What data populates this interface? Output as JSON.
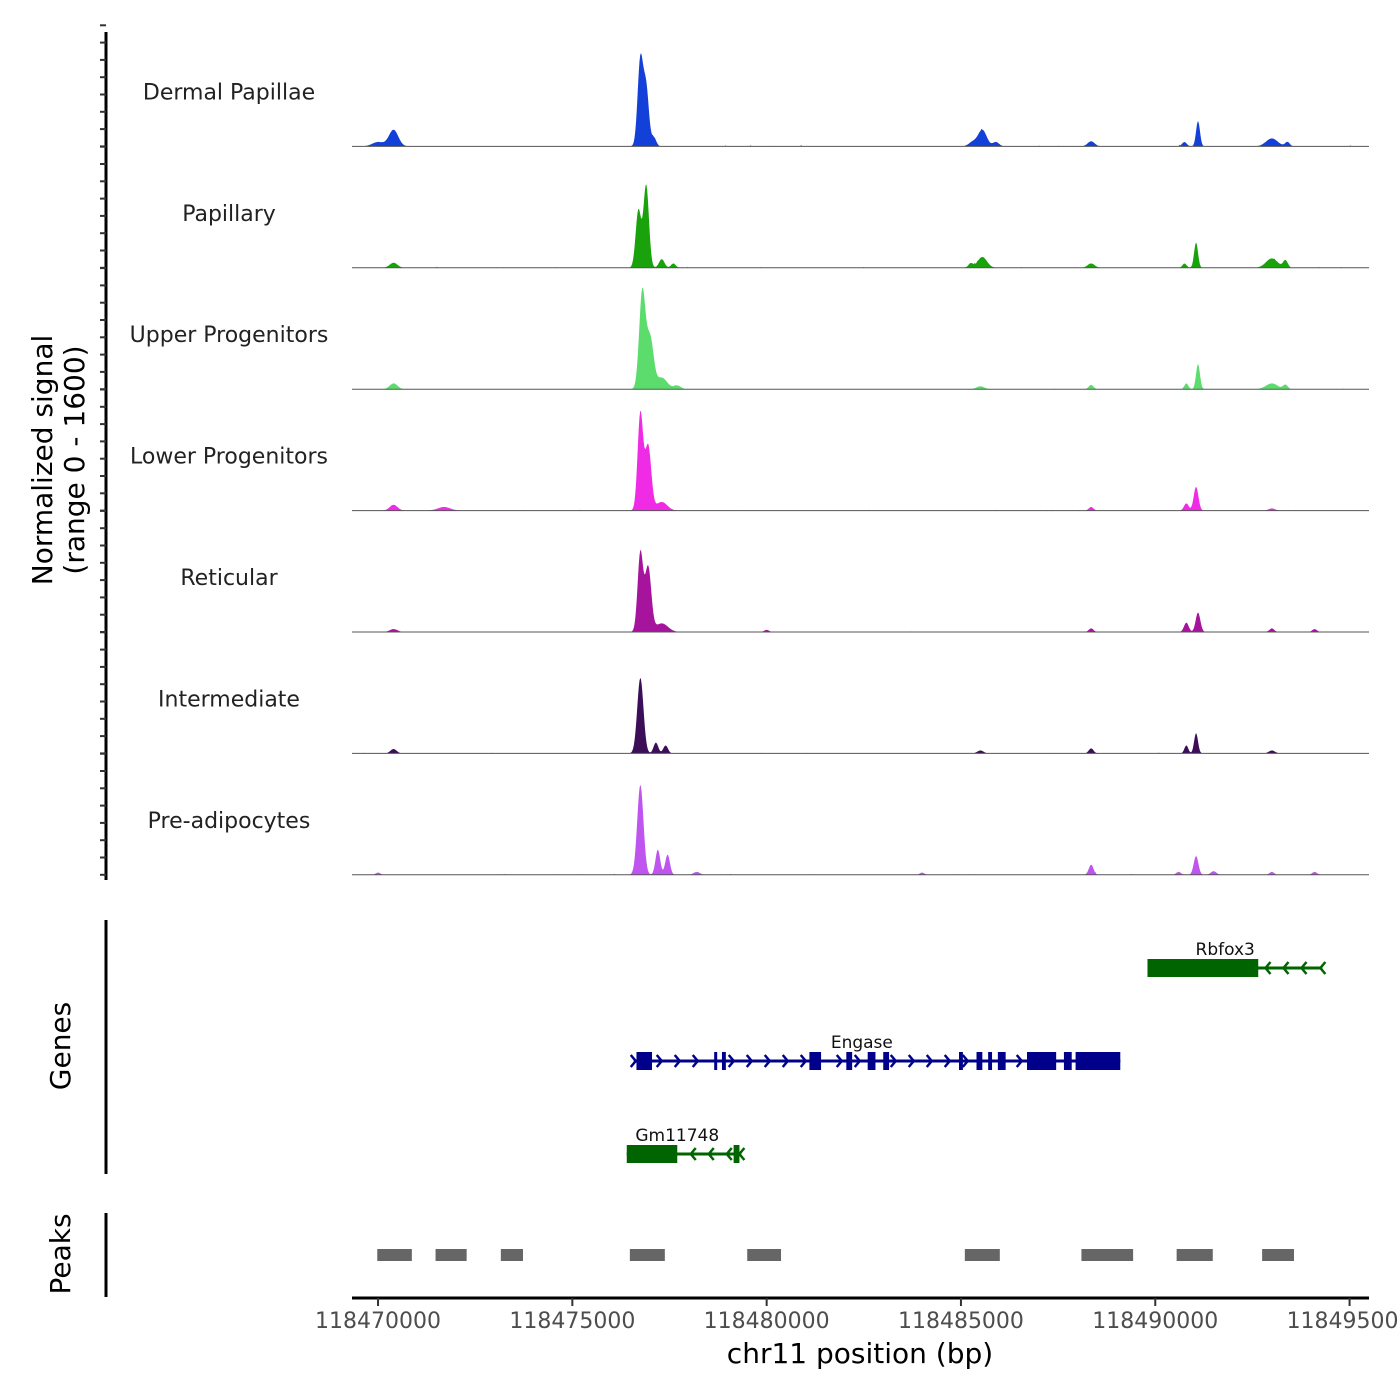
{
  "chart_data": {
    "type": "genome-coverage",
    "xlabel": "chr11 position (bp)",
    "ylabel": "Normalized signal",
    "ylabel_range": "(range 0 - 1600)",
    "y_range": [
      0,
      1600
    ],
    "x_range": [
      118469330,
      118495500
    ],
    "x_ticks": [
      118470000,
      118475000,
      118480000,
      118485000,
      118490000,
      118495000
    ],
    "x_tick_labels": [
      "118470000",
      "118475000",
      "118480000",
      "118485000",
      "118490000",
      "118495000"
    ],
    "tracks": [
      {
        "name": "Dermal Papillae",
        "color": "#1340D8",
        "peaks": [
          [
            118470000,
            60,
            150
          ],
          [
            118470400,
            230,
            120
          ],
          [
            118476750,
            1200,
            70
          ],
          [
            118476900,
            800,
            70
          ],
          [
            118477100,
            120,
            60
          ],
          [
            118485300,
            60,
            100
          ],
          [
            118485550,
            230,
            110
          ],
          [
            118485900,
            60,
            80
          ],
          [
            118488350,
            70,
            90
          ],
          [
            118490750,
            60,
            60
          ],
          [
            118491100,
            350,
            50
          ],
          [
            118493000,
            110,
            150
          ],
          [
            118493400,
            60,
            60
          ]
        ],
        "noise": 12
      },
      {
        "name": "Papillary",
        "color": "#1AA20C",
        "peaks": [
          [
            118470400,
            70,
            100
          ],
          [
            118476700,
            800,
            70
          ],
          [
            118476900,
            1150,
            70
          ],
          [
            118477300,
            120,
            70
          ],
          [
            118477600,
            60,
            60
          ],
          [
            118485250,
            60,
            60
          ],
          [
            118485550,
            150,
            120
          ],
          [
            118488350,
            60,
            90
          ],
          [
            118490750,
            60,
            50
          ],
          [
            118491050,
            350,
            50
          ],
          [
            118493000,
            130,
            150
          ],
          [
            118493350,
            100,
            60
          ]
        ],
        "noise": 8
      },
      {
        "name": "Upper Progenitors",
        "color": "#5CDC6D",
        "peaks": [
          [
            118470400,
            80,
            100
          ],
          [
            118476800,
            1350,
            80
          ],
          [
            118477000,
            700,
            90
          ],
          [
            118477300,
            160,
            140
          ],
          [
            118477700,
            50,
            90
          ],
          [
            118485500,
            40,
            100
          ],
          [
            118488350,
            60,
            60
          ],
          [
            118490800,
            80,
            50
          ],
          [
            118491100,
            350,
            50
          ],
          [
            118493000,
            80,
            150
          ],
          [
            118493350,
            60,
            60
          ]
        ],
        "noise": 6
      },
      {
        "name": "Lower Progenitors",
        "color": "#F02BE6",
        "peaks": [
          [
            118470400,
            80,
            100
          ],
          [
            118471700,
            50,
            160
          ],
          [
            118476750,
            1350,
            70
          ],
          [
            118476950,
            900,
            80
          ],
          [
            118477300,
            120,
            140
          ],
          [
            118488350,
            50,
            60
          ],
          [
            118490800,
            100,
            60
          ],
          [
            118491050,
            330,
            60
          ],
          [
            118493000,
            30,
            80
          ]
        ],
        "noise": 7
      },
      {
        "name": "Reticular",
        "color": "#A6149E",
        "peaks": [
          [
            118470400,
            40,
            100
          ],
          [
            118476750,
            1100,
            70
          ],
          [
            118476950,
            900,
            80
          ],
          [
            118477300,
            120,
            160
          ],
          [
            118480000,
            30,
            60
          ],
          [
            118488350,
            50,
            60
          ],
          [
            118490800,
            130,
            60
          ],
          [
            118491100,
            270,
            60
          ],
          [
            118493000,
            50,
            60
          ],
          [
            118494100,
            40,
            60
          ]
        ],
        "noise": 5
      },
      {
        "name": "Intermediate",
        "color": "#3C0E57",
        "peaks": [
          [
            118470400,
            60,
            80
          ],
          [
            118476750,
            1050,
            80
          ],
          [
            118477150,
            150,
            60
          ],
          [
            118477400,
            110,
            60
          ],
          [
            118485500,
            40,
            80
          ],
          [
            118488350,
            70,
            60
          ],
          [
            118490800,
            110,
            50
          ],
          [
            118491050,
            280,
            50
          ],
          [
            118493000,
            40,
            80
          ]
        ],
        "noise": 5
      },
      {
        "name": "Pre-adipocytes",
        "color": "#BD55EE",
        "peaks": [
          [
            118470000,
            30,
            60
          ],
          [
            118476750,
            1250,
            80
          ],
          [
            118477200,
            350,
            60
          ],
          [
            118477450,
            280,
            60
          ],
          [
            118478200,
            40,
            80
          ],
          [
            118484000,
            30,
            60
          ],
          [
            118488350,
            140,
            60
          ],
          [
            118490600,
            40,
            60
          ],
          [
            118491050,
            260,
            60
          ],
          [
            118491500,
            50,
            70
          ],
          [
            118493000,
            40,
            60
          ],
          [
            118494100,
            40,
            60
          ]
        ],
        "noise": 9
      }
    ],
    "genes_label": "Genes",
    "genes": [
      {
        "name": "Rbfox3",
        "color": "#006400",
        "strand": "-",
        "start": 118489800,
        "end": 118494300,
        "label_pos": 118491800,
        "exons": [
          [
            118489800,
            118492650
          ]
        ]
      },
      {
        "name": "Engase",
        "color": "#00008B",
        "strand": "+",
        "start": 118476580,
        "end": 118489100,
        "label_pos": 118482450,
        "exons": [
          [
            118476650,
            118477050
          ],
          [
            118478650,
            118478700
          ],
          [
            118478850,
            118478950
          ],
          [
            118481100,
            118481400
          ],
          [
            118482050,
            118482200
          ],
          [
            118482600,
            118482800
          ],
          [
            118483000,
            118483150
          ],
          [
            118484950,
            118485050
          ],
          [
            118485400,
            118485550
          ],
          [
            118485700,
            118485800
          ],
          [
            118485950,
            118486150
          ],
          [
            118486700,
            118487450
          ],
          [
            118487650,
            118487850
          ],
          [
            118487950,
            118489100
          ]
        ]
      },
      {
        "name": "Gm11748",
        "color": "#006400",
        "strand": "-",
        "start": 118476400,
        "end": 118479350,
        "label_pos": 118477700,
        "exons": [
          [
            118476400,
            118477700
          ],
          [
            118479150,
            118479300
          ]
        ]
      }
    ],
    "peaks_label": "Peaks",
    "peak_regions": [
      [
        118469980,
        118470870
      ],
      [
        118471480,
        118472280
      ],
      [
        118473160,
        118473730
      ],
      [
        118476480,
        118477380
      ],
      [
        118479500,
        118480370
      ],
      [
        118485100,
        118486000
      ],
      [
        118488100,
        118489430
      ],
      [
        118490550,
        118491480
      ],
      [
        118492750,
        118493570
      ]
    ],
    "peak_color": "#666666"
  }
}
